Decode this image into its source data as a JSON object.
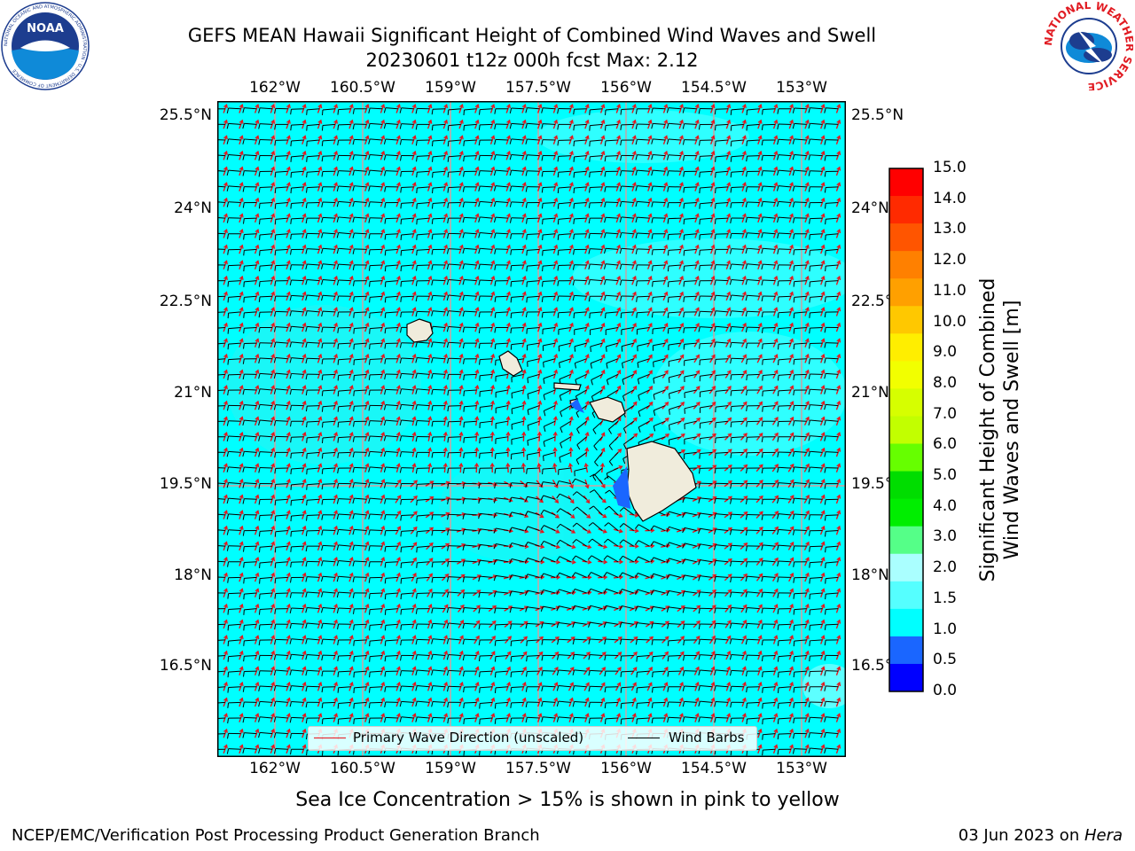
{
  "title": {
    "line1": "GEFS MEAN Hawaii Significant Height of Combined Wind Waves and Swell",
    "line2": "20230601 t12z 000h fcst   Max: 2.12"
  },
  "map": {
    "lon_ticks": [
      "162°W",
      "160.5°W",
      "159°W",
      "157.5°W",
      "156°W",
      "154.5°W",
      "153°W"
    ],
    "lat_ticks": [
      "25.5°N",
      "24°N",
      "22.5°N",
      "21°N",
      "19.5°N",
      "18°N",
      "16.5°N"
    ],
    "ocean_color": "#00ffff",
    "land_color": "#f0ecdc",
    "wave_arrow_color": "#e8141b",
    "barb_color": "#000000"
  },
  "legend": {
    "wave_label": "Primary Wave Direction (unscaled)",
    "barb_label": "Wind Barbs"
  },
  "colorbar": {
    "label_line1": "Significant Height of Combined",
    "label_line2": "Wind Waves and Swell [m]",
    "ticks": [
      "15.0",
      "14.0",
      "13.0",
      "12.0",
      "11.0",
      "10.0",
      "9.0",
      "8.0",
      "7.0",
      "6.0",
      "5.0",
      "4.0",
      "3.0",
      "2.0",
      "1.5",
      "1.0",
      "0.5",
      "0.0"
    ],
    "colors": [
      "#ff0000",
      "#ff2a00",
      "#ff5500",
      "#ff8000",
      "#ffa000",
      "#ffc800",
      "#ffee00",
      "#f2ff00",
      "#d6ff00",
      "#c2ff00",
      "#66ff00",
      "#00dd00",
      "#00ee00",
      "#55ff88",
      "#aaffff",
      "#55ffff",
      "#00ffff",
      "#1a66ff",
      "#0000ff"
    ]
  },
  "caption": "Sea Ice Concentration > 15% is shown in pink to yellow",
  "footer": {
    "left": "NCEP/EMC/Verification Post Processing Product Generation Branch",
    "date": "03 Jun 2023 on ",
    "machine": "Hera"
  },
  "logos": {
    "noaa_text": "NOAA",
    "noaa_ring": "NATIONAL OCEANIC AND ATMOSPHERIC ADMINISTRATION · U.S. DEPARTMENT OF COMMERCE",
    "nws_ring": "NATIONAL WEATHER SERVICE"
  }
}
